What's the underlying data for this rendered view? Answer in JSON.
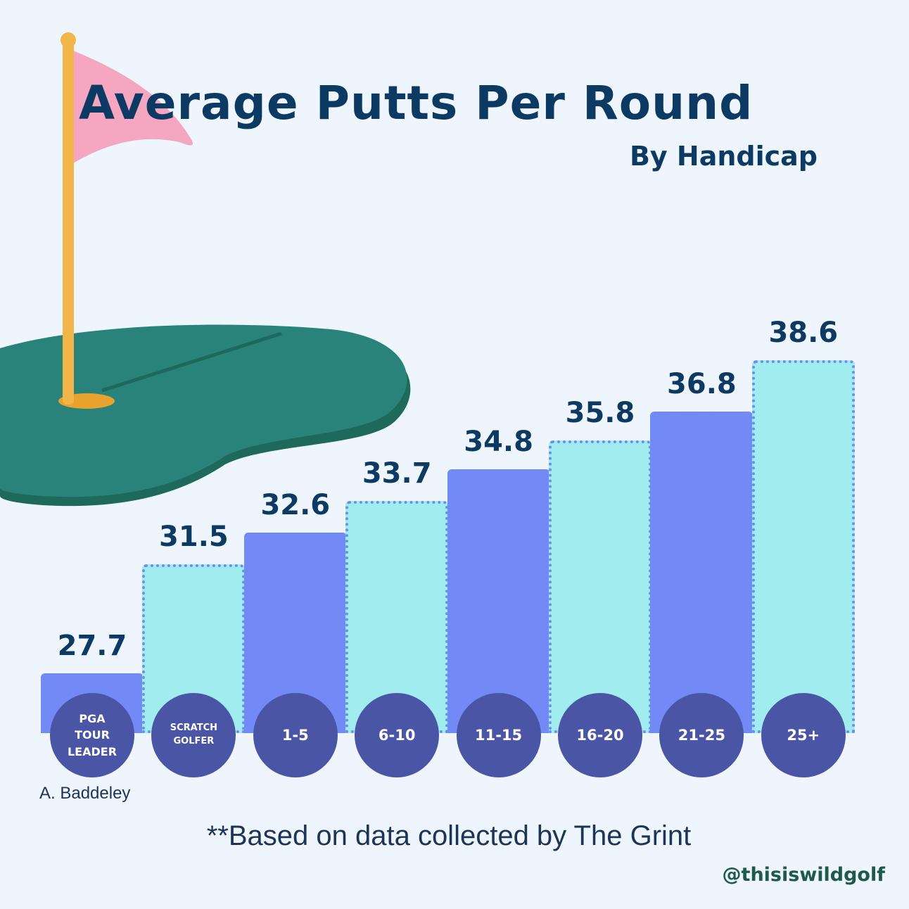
{
  "chart_data": {
    "type": "bar",
    "title": "Average Putts Per Round",
    "subtitle": "By Handicap",
    "categories": [
      "PGA TOUR LEADER",
      "SCRATCH GOLFER",
      "1-5",
      "6-10",
      "11-15",
      "16-20",
      "21-25",
      "25+"
    ],
    "values": [
      27.7,
      31.5,
      32.6,
      33.7,
      34.8,
      35.8,
      36.8,
      38.6
    ],
    "colors": [
      "#7389f6",
      "#a0ecef",
      "#7389f6",
      "#a0ecef",
      "#7389f6",
      "#a0ecef",
      "#7389f6",
      "#a0ecef"
    ],
    "annotation": "A. Baddeley",
    "footnote": "**Based on data collected by The Grint",
    "credit": "@thisiswildgolf"
  }
}
